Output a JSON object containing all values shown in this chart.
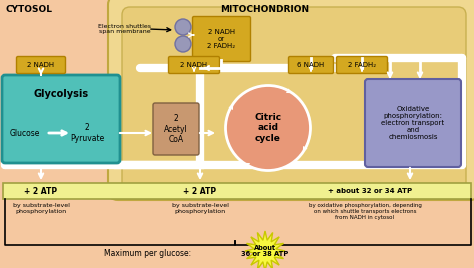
{
  "bg_color": "#f5c8a0",
  "mito_outer_color": "#f0d890",
  "mito_inner_color": "#e8cc78",
  "cytosol_label": "CYTOSOL",
  "mito_label": "MITOCHONDRION",
  "glycolysis_box_color": "#50c0b8",
  "glycolysis_label": "Glycolysis",
  "acetyl_box_color": "#c89870",
  "acetyl_label": "2\nAcetyl\nCoA",
  "citric_ellipse_color": "#e89878",
  "citric_label": "Citric\nacid\ncycle",
  "oxidative_box_color": "#9898c8",
  "oxidative_label": "Oxidative\nphosphorylation:\nelectron transport\nand\nchemiosmosis",
  "nadh_box_color": "#d4a820",
  "nadh_border_color": "#b08000",
  "shuttle_label": "Electron shuttles\nspan membrane",
  "shuttle_circle_color": "#9898b8",
  "shuttle_nadh": "2 NADH\nor\n2 FADH₂",
  "atp_bar_color": "#f0f090",
  "atp_bar_border": "#a0a040",
  "atp_label1": "+ 2 ATP",
  "atp_label2": "+ 2 ATP",
  "atp_label3": "+ about 32 or 34 ATP",
  "atp_sub1": "by substrate-level\nphosphorylation",
  "atp_sub2": "by substrate-level\nphosphorylation",
  "atp_sub3": "by oxidative phosphorylation, depending\non which shuttle transports electrons\nfrom NADH in cytosol",
  "max_label": "Maximum per glucose:",
  "starburst_color": "#f8f840",
  "starburst_border": "#c8c800",
  "starburst_label": "About\n36 or 38 ATP",
  "white": "#ffffff",
  "black": "#000000"
}
